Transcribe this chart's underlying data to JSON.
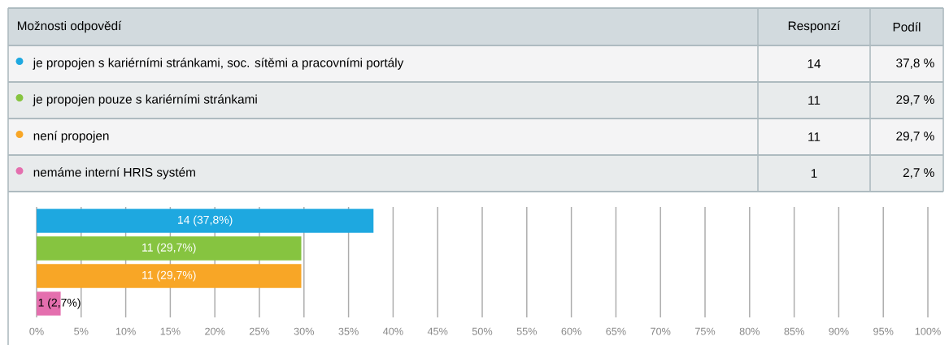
{
  "chart_data": {
    "type": "bar",
    "orientation": "horizontal",
    "categories": [
      null,
      null,
      null,
      null
    ],
    "series": [
      {
        "name": "je propojen s kariérními stránkami, soc. sítěmi a pracovními portály",
        "color": "#1ea8e0",
        "values": [
          37.8,
          null,
          null,
          null
        ],
        "value_labels": [
          "14 (37,8%)",
          null,
          null,
          null
        ]
      },
      {
        "name": "je propojen pouze s kariérními stránkami",
        "color": "#86c440",
        "values": [
          null,
          29.7,
          null,
          null
        ],
        "value_labels": [
          null,
          "11 (29,7%)",
          null,
          null
        ]
      },
      {
        "name": "není propojen",
        "color": "#f8a626",
        "values": [
          null,
          null,
          29.7,
          null
        ],
        "value_labels": [
          null,
          null,
          "11 (29,7%)",
          null
        ]
      },
      {
        "name": "nemáme interní HRIS systém",
        "color": "#e46fae",
        "values": [
          null,
          null,
          null,
          2.7
        ],
        "value_labels": [
          null,
          null,
          null,
          "1 (2,7%)"
        ]
      }
    ],
    "legend": "top",
    "xlim": [
      0,
      100
    ],
    "xticks": [
      {
        "value": 0,
        "label": "0%"
      },
      {
        "value": 5,
        "label": "5%"
      },
      {
        "value": 10,
        "label": "10%"
      },
      {
        "value": 15,
        "label": "15%"
      },
      {
        "value": 20,
        "label": "20%"
      },
      {
        "value": 25,
        "label": "25%"
      },
      {
        "value": 30,
        "label": "30%"
      },
      {
        "value": 35,
        "label": "35%"
      },
      {
        "value": 40,
        "label": "40%"
      },
      {
        "value": 45,
        "label": "45%"
      },
      {
        "value": 50,
        "label": "50%"
      },
      {
        "value": 55,
        "label": "55%"
      },
      {
        "value": 60,
        "label": "60%"
      },
      {
        "value": 65,
        "label": "65%"
      },
      {
        "value": 70,
        "label": "70%"
      },
      {
        "value": 75,
        "label": "75%"
      },
      {
        "value": 80,
        "label": "80%"
      },
      {
        "value": 85,
        "label": "85%"
      },
      {
        "value": 90,
        "label": "90%"
      },
      {
        "value": 95,
        "label": "95%"
      },
      {
        "value": 100,
        "label": "100%"
      }
    ],
    "grid": "x",
    "annotations": [
      "Možnosti odpovědí",
      "Responzí",
      "Podíl",
      "14",
      "37,8 %",
      "11",
      "29,7 %",
      "11",
      "29,7 %",
      "1",
      "2,7 %"
    ]
  }
}
